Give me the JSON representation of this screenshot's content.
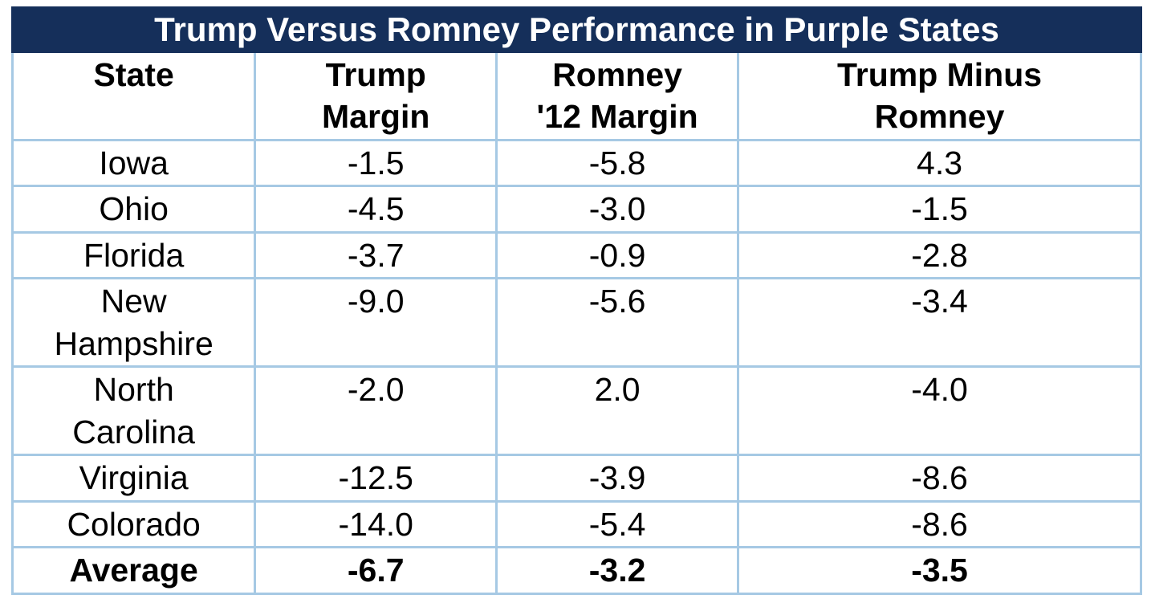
{
  "chart_data": {
    "type": "table",
    "title": "Trump Versus Romney Performance in Purple States",
    "columns": [
      "State",
      "Trump Margin",
      "Romney '12 Margin",
      "Trump Minus Romney"
    ],
    "rows": [
      {
        "state": "Iowa",
        "trump_margin": -1.5,
        "romney_12_margin": -5.8,
        "trump_minus_romney": 4.3
      },
      {
        "state": "Ohio",
        "trump_margin": -4.5,
        "romney_12_margin": -3.0,
        "trump_minus_romney": -1.5
      },
      {
        "state": "Florida",
        "trump_margin": -3.7,
        "romney_12_margin": -0.9,
        "trump_minus_romney": -2.8
      },
      {
        "state": "New Hampshire",
        "trump_margin": -9.0,
        "romney_12_margin": -5.6,
        "trump_minus_romney": -3.4
      },
      {
        "state": "North Carolina",
        "trump_margin": -2.0,
        "romney_12_margin": 2.0,
        "trump_minus_romney": -4.0
      },
      {
        "state": "Virginia",
        "trump_margin": -12.5,
        "romney_12_margin": -3.9,
        "trump_minus_romney": -8.6
      },
      {
        "state": "Colorado",
        "trump_margin": -14.0,
        "romney_12_margin": -5.4,
        "trump_minus_romney": -8.6
      },
      {
        "state": "Average",
        "trump_margin": -6.7,
        "romney_12_margin": -3.2,
        "trump_minus_romney": -3.5
      }
    ]
  },
  "display": {
    "title": "Trump Versus Romney Performance in Purple States",
    "header": {
      "state": "State",
      "trump": "Trump\nMargin",
      "romney": "Romney\n'12 Margin",
      "diff": "Trump Minus\nRomney"
    },
    "rows": [
      {
        "state": "Iowa",
        "trump": "-1.5",
        "romney": "-5.8",
        "diff": "4.3"
      },
      {
        "state": "Ohio",
        "trump": "-4.5",
        "romney": "-3.0",
        "diff": "-1.5"
      },
      {
        "state": "Florida",
        "trump": "-3.7",
        "romney": "-0.9",
        "diff": "-2.8"
      },
      {
        "state": "New\nHampshire",
        "trump": "-9.0",
        "romney": "-5.6",
        "diff": "-3.4"
      },
      {
        "state": "North\nCarolina",
        "trump": "-2.0",
        "romney": "2.0",
        "diff": "-4.0"
      },
      {
        "state": "Virginia",
        "trump": "-12.5",
        "romney": "-3.9",
        "diff": "-8.6"
      },
      {
        "state": "Colorado",
        "trump": "-14.0",
        "romney": "-5.4",
        "diff": "-8.6"
      },
      {
        "state": "Average",
        "trump": "-6.7",
        "romney": "-3.2",
        "diff": "-3.5"
      }
    ]
  },
  "colors": {
    "title_background": "#152F5A",
    "title_text": "#FFFFFF",
    "grid_line": "#A6C9E4",
    "body_text": "#000000",
    "cell_background": "#FFFFFF"
  }
}
